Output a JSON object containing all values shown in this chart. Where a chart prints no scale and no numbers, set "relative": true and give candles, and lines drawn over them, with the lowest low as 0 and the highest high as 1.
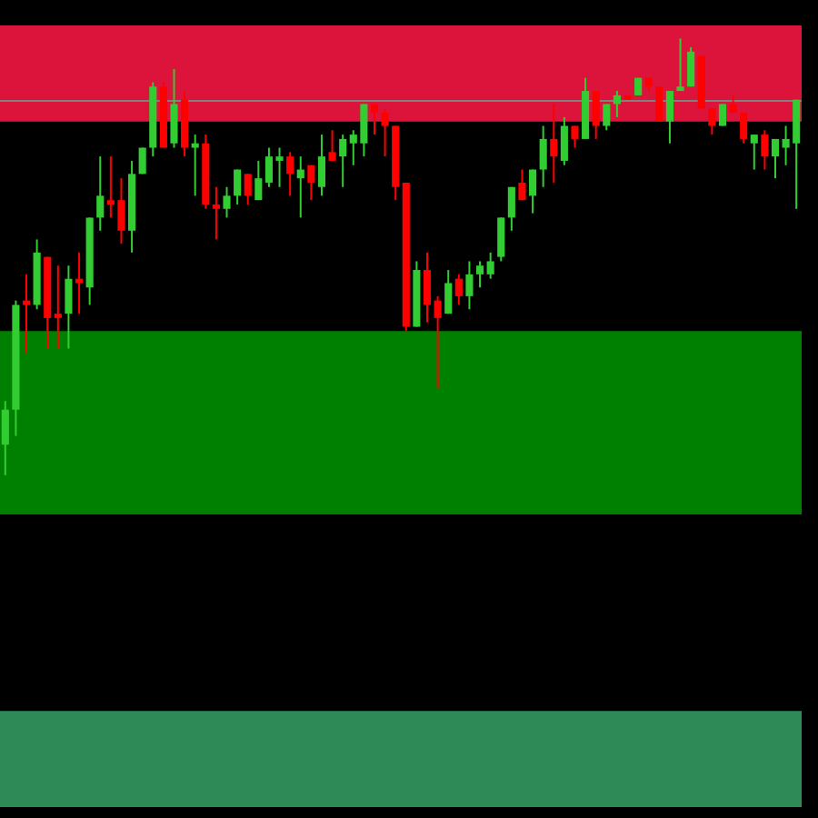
{
  "chart_data": {
    "type": "candlestick",
    "relative": true,
    "categories": [
      null,
      null,
      null,
      null,
      null,
      null,
      null,
      null,
      null,
      null,
      null,
      null,
      null,
      null,
      null,
      null,
      null,
      null,
      null,
      null,
      null,
      null,
      null,
      null,
      null,
      null,
      null,
      null,
      null,
      null,
      null,
      null,
      null,
      null,
      null,
      null,
      null,
      null,
      null,
      null,
      null,
      null,
      null,
      null,
      null,
      null,
      null,
      null,
      null,
      null,
      null,
      null,
      null,
      null,
      null,
      null,
      null,
      null,
      null,
      null,
      null,
      null,
      null,
      null,
      null,
      null,
      null,
      null,
      null,
      null,
      null,
      null,
      null,
      null,
      null,
      null
    ],
    "ohlc": [
      [
        0.07,
        0.17,
        0,
        0.15
      ],
      [
        0.15,
        0.4,
        0.09,
        0.39
      ],
      [
        0.4,
        0.46,
        0.28,
        0.39
      ],
      [
        0.39,
        0.54,
        0.38,
        0.51
      ],
      [
        0.5,
        0.5,
        0.29,
        0.36
      ],
      [
        0.37,
        0.48,
        0.29,
        0.36
      ],
      [
        0.37,
        0.48,
        0.29,
        0.45
      ],
      [
        0.45,
        0.51,
        0.37,
        0.44
      ],
      [
        0.43,
        0.59,
        0.39,
        0.59
      ],
      [
        0.59,
        0.73,
        0.56,
        0.64
      ],
      [
        0.63,
        0.73,
        0.59,
        0.62
      ],
      [
        0.63,
        0.68,
        0.53,
        0.56
      ],
      [
        0.56,
        0.72,
        0.51,
        0.69
      ],
      [
        0.69,
        0.75,
        0.69,
        0.75
      ],
      [
        0.75,
        0.9,
        0.73,
        0.89
      ],
      [
        0.89,
        0.9,
        0.75,
        0.75
      ],
      [
        0.76,
        0.93,
        0.75,
        0.85
      ],
      [
        0.86,
        0.88,
        0.73,
        0.75
      ],
      [
        0.75,
        0.78,
        0.64,
        0.76
      ],
      [
        0.76,
        0.78,
        0.61,
        0.62
      ],
      [
        0.62,
        0.66,
        0.54,
        0.61
      ],
      [
        0.61,
        0.66,
        0.59,
        0.64
      ],
      [
        0.64,
        0.7,
        0.62,
        0.7
      ],
      [
        0.69,
        0.69,
        0.62,
        0.64
      ],
      [
        0.63,
        0.72,
        0.63,
        0.68
      ],
      [
        0.67,
        0.75,
        0.66,
        0.73
      ],
      [
        0.72,
        0.75,
        0.66,
        0.73
      ],
      [
        0.73,
        0.74,
        0.64,
        0.69
      ],
      [
        0.68,
        0.73,
        0.59,
        0.7
      ],
      [
        0.71,
        0.71,
        0.63,
        0.67
      ],
      [
        0.66,
        0.78,
        0.64,
        0.73
      ],
      [
        0.74,
        0.79,
        0.72,
        0.72
      ],
      [
        0.73,
        0.78,
        0.66,
        0.77
      ],
      [
        0.76,
        0.79,
        0.71,
        0.78
      ],
      [
        0.76,
        0.85,
        0.73,
        0.85
      ],
      [
        0.85,
        0.85,
        0.78,
        0.83
      ],
      [
        0.83,
        0.84,
        0.73,
        0.8
      ],
      [
        0.8,
        0.8,
        0.63,
        0.66
      ],
      [
        0.67,
        0.67,
        0.33,
        0.34
      ],
      [
        0.34,
        0.49,
        0.34,
        0.47
      ],
      [
        0.47,
        0.51,
        0.35,
        0.39
      ],
      [
        0.4,
        0.41,
        0.2,
        0.36
      ],
      [
        0.37,
        0.47,
        0.37,
        0.44
      ],
      [
        0.45,
        0.46,
        0.39,
        0.41
      ],
      [
        0.41,
        0.49,
        0.38,
        0.46
      ],
      [
        0.46,
        0.49,
        0.43,
        0.48
      ],
      [
        0.46,
        0.51,
        0.45,
        0.49
      ],
      [
        0.5,
        0.59,
        0.49,
        0.59
      ],
      [
        0.59,
        0.66,
        0.56,
        0.66
      ],
      [
        0.67,
        0.7,
        0.63,
        0.63
      ],
      [
        0.64,
        0.7,
        0.6,
        0.7
      ],
      [
        0.7,
        0.8,
        0.66,
        0.77
      ],
      [
        0.77,
        0.85,
        0.67,
        0.73
      ],
      [
        0.72,
        0.82,
        0.71,
        0.8
      ],
      [
        0.8,
        0.8,
        0.75,
        0.77
      ],
      [
        0.77,
        0.91,
        0.77,
        0.88
      ],
      [
        0.88,
        0.88,
        0.77,
        0.8
      ],
      [
        0.8,
        0.85,
        0.79,
        0.85
      ],
      [
        0.85,
        0.88,
        0.82,
        0.87
      ],
      [
        0.87,
        0.87,
        0.86,
        0.86
      ],
      [
        0.87,
        0.91,
        0.87,
        0.91
      ],
      [
        0.91,
        0.91,
        0.88,
        0.89
      ],
      [
        0.89,
        0.89,
        0.81,
        0.81
      ],
      [
        0.81,
        0.88,
        0.76,
        0.88
      ],
      [
        0.88,
        1,
        0.88,
        0.89
      ],
      [
        0.89,
        0.98,
        0.89,
        0.97
      ],
      [
        0.96,
        0.96,
        0.84,
        0.84
      ],
      [
        0.84,
        0.84,
        0.78,
        0.8
      ],
      [
        0.8,
        0.85,
        0.8,
        0.85
      ],
      [
        0.85,
        0.87,
        0.83,
        0.83
      ],
      [
        0.83,
        0.83,
        0.76,
        0.77
      ],
      [
        0.76,
        0.78,
        0.7,
        0.78
      ],
      [
        0.78,
        0.79,
        0.7,
        0.73
      ],
      [
        0.73,
        0.77,
        0.68,
        0.77
      ],
      [
        0.75,
        0.8,
        0.71,
        0.77
      ],
      [
        0.76,
        0.86,
        0.61,
        0.86
      ]
    ],
    "bands": [
      {
        "axis": "y",
        "from": 0.81,
        "to": 1.03,
        "color": "#dc143c"
      },
      {
        "axis": "y",
        "from": -0.09,
        "to": 0.33,
        "color": "#008000"
      },
      {
        "axis": "y",
        "from": -0.76,
        "to": -0.54,
        "color": "#2e8b57"
      }
    ],
    "ref_lines": [
      {
        "axis": "y",
        "value": 0.86,
        "color": "#808080"
      }
    ]
  }
}
